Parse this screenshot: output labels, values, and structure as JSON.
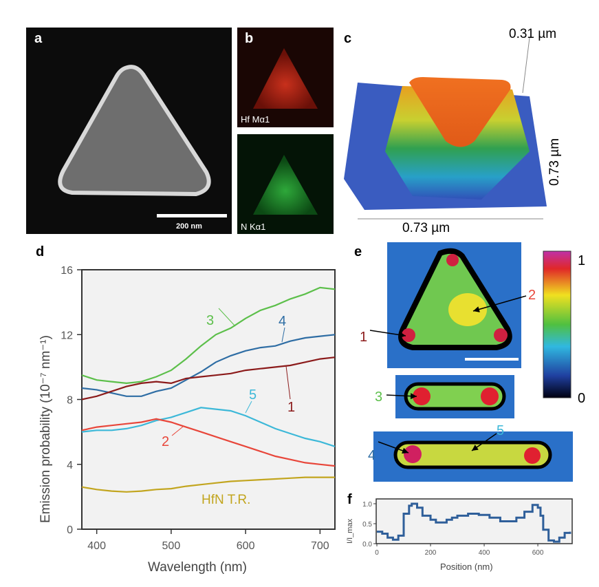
{
  "panels": {
    "a": {
      "label": "a",
      "scale_bar": "200 nm"
    },
    "b": {
      "label": "b",
      "map_top": "Hf Mα1",
      "map_bottom": "N Kα1"
    },
    "c": {
      "label": "c",
      "z_extent": "0.31 µm",
      "y_extent": "0.73 µm",
      "x_extent": "0.73 µm"
    },
    "e": {
      "label": "e",
      "colorbar_max": "1",
      "colorbar_min": "0",
      "markers": [
        "1",
        "2",
        "3",
        "4",
        "5"
      ]
    }
  },
  "colors": {
    "1": "#8b1a1a",
    "2": "#e8463a",
    "3": "#5cbf4a",
    "4": "#2e6da4",
    "5": "#3cb8d8",
    "HfN T.R.": "#c2a51e",
    "f_line": "#2f5f9a"
  },
  "chart_data": [
    {
      "panel": "d",
      "label": "d",
      "type": "line",
      "xlabel": "Wavelength (nm)",
      "ylabel": "Emission probability (10⁻⁷ nm⁻¹)",
      "xlim": [
        380,
        720
      ],
      "ylim": [
        0,
        16
      ],
      "xticks": [
        "400",
        "500",
        "600",
        "700"
      ],
      "yticks": [
        "0",
        "4",
        "8",
        "12",
        "16"
      ],
      "x": [
        380,
        400,
        420,
        440,
        460,
        480,
        500,
        520,
        540,
        560,
        580,
        600,
        620,
        640,
        660,
        680,
        700,
        720
      ],
      "series": [
        {
          "name": "3",
          "values": [
            9.5,
            9.2,
            9.1,
            9.0,
            9.1,
            9.4,
            9.8,
            10.5,
            11.3,
            12.0,
            12.4,
            13.0,
            13.5,
            13.8,
            14.2,
            14.5,
            14.9,
            14.8
          ]
        },
        {
          "name": "4",
          "values": [
            8.7,
            8.6,
            8.4,
            8.2,
            8.2,
            8.5,
            8.7,
            9.2,
            9.7,
            10.3,
            10.7,
            11.0,
            11.2,
            11.3,
            11.6,
            11.8,
            11.9,
            12.0
          ]
        },
        {
          "name": "1",
          "values": [
            8.0,
            8.2,
            8.5,
            8.8,
            9.0,
            9.1,
            9.0,
            9.3,
            9.4,
            9.5,
            9.6,
            9.8,
            9.9,
            10.0,
            10.1,
            10.3,
            10.5,
            10.6
          ]
        },
        {
          "name": "5",
          "values": [
            6.0,
            6.1,
            6.1,
            6.2,
            6.4,
            6.7,
            6.9,
            7.2,
            7.5,
            7.4,
            7.3,
            7.0,
            6.6,
            6.2,
            5.9,
            5.6,
            5.4,
            5.1
          ]
        },
        {
          "name": "2",
          "values": [
            6.1,
            6.3,
            6.4,
            6.5,
            6.6,
            6.8,
            6.6,
            6.3,
            6.0,
            5.7,
            5.4,
            5.1,
            4.8,
            4.5,
            4.3,
            4.1,
            4.0,
            3.9
          ]
        },
        {
          "name": "HfN T.R.",
          "values": [
            2.6,
            2.45,
            2.35,
            2.3,
            2.35,
            2.45,
            2.5,
            2.65,
            2.75,
            2.85,
            2.95,
            3.0,
            3.05,
            3.1,
            3.15,
            3.2,
            3.2,
            3.2
          ]
        }
      ]
    },
    {
      "panel": "f",
      "label": "f",
      "type": "line",
      "xlabel": "Position (nm)",
      "ylabel": "I/I_max",
      "xlim": [
        0,
        728
      ],
      "ylim": [
        0,
        1.0
      ],
      "xticks": [
        "0",
        "200",
        "400",
        "600"
      ],
      "yticks": [
        "0.0",
        "0.5",
        "1.0"
      ],
      "x": [
        0,
        20,
        40,
        60,
        80,
        100,
        120,
        130,
        150,
        170,
        200,
        220,
        240,
        260,
        280,
        300,
        340,
        380,
        420,
        460,
        490,
        520,
        550,
        580,
        600,
        610,
        620,
        640,
        660,
        680,
        700,
        720
      ],
      "values": [
        0.3,
        0.25,
        0.15,
        0.1,
        0.2,
        0.75,
        0.95,
        1.0,
        0.9,
        0.7,
        0.6,
        0.53,
        0.53,
        0.6,
        0.65,
        0.7,
        0.75,
        0.72,
        0.65,
        0.56,
        0.56,
        0.65,
        0.8,
        0.97,
        0.9,
        0.7,
        0.35,
        0.08,
        0.05,
        0.15,
        0.27,
        0.3
      ]
    }
  ]
}
